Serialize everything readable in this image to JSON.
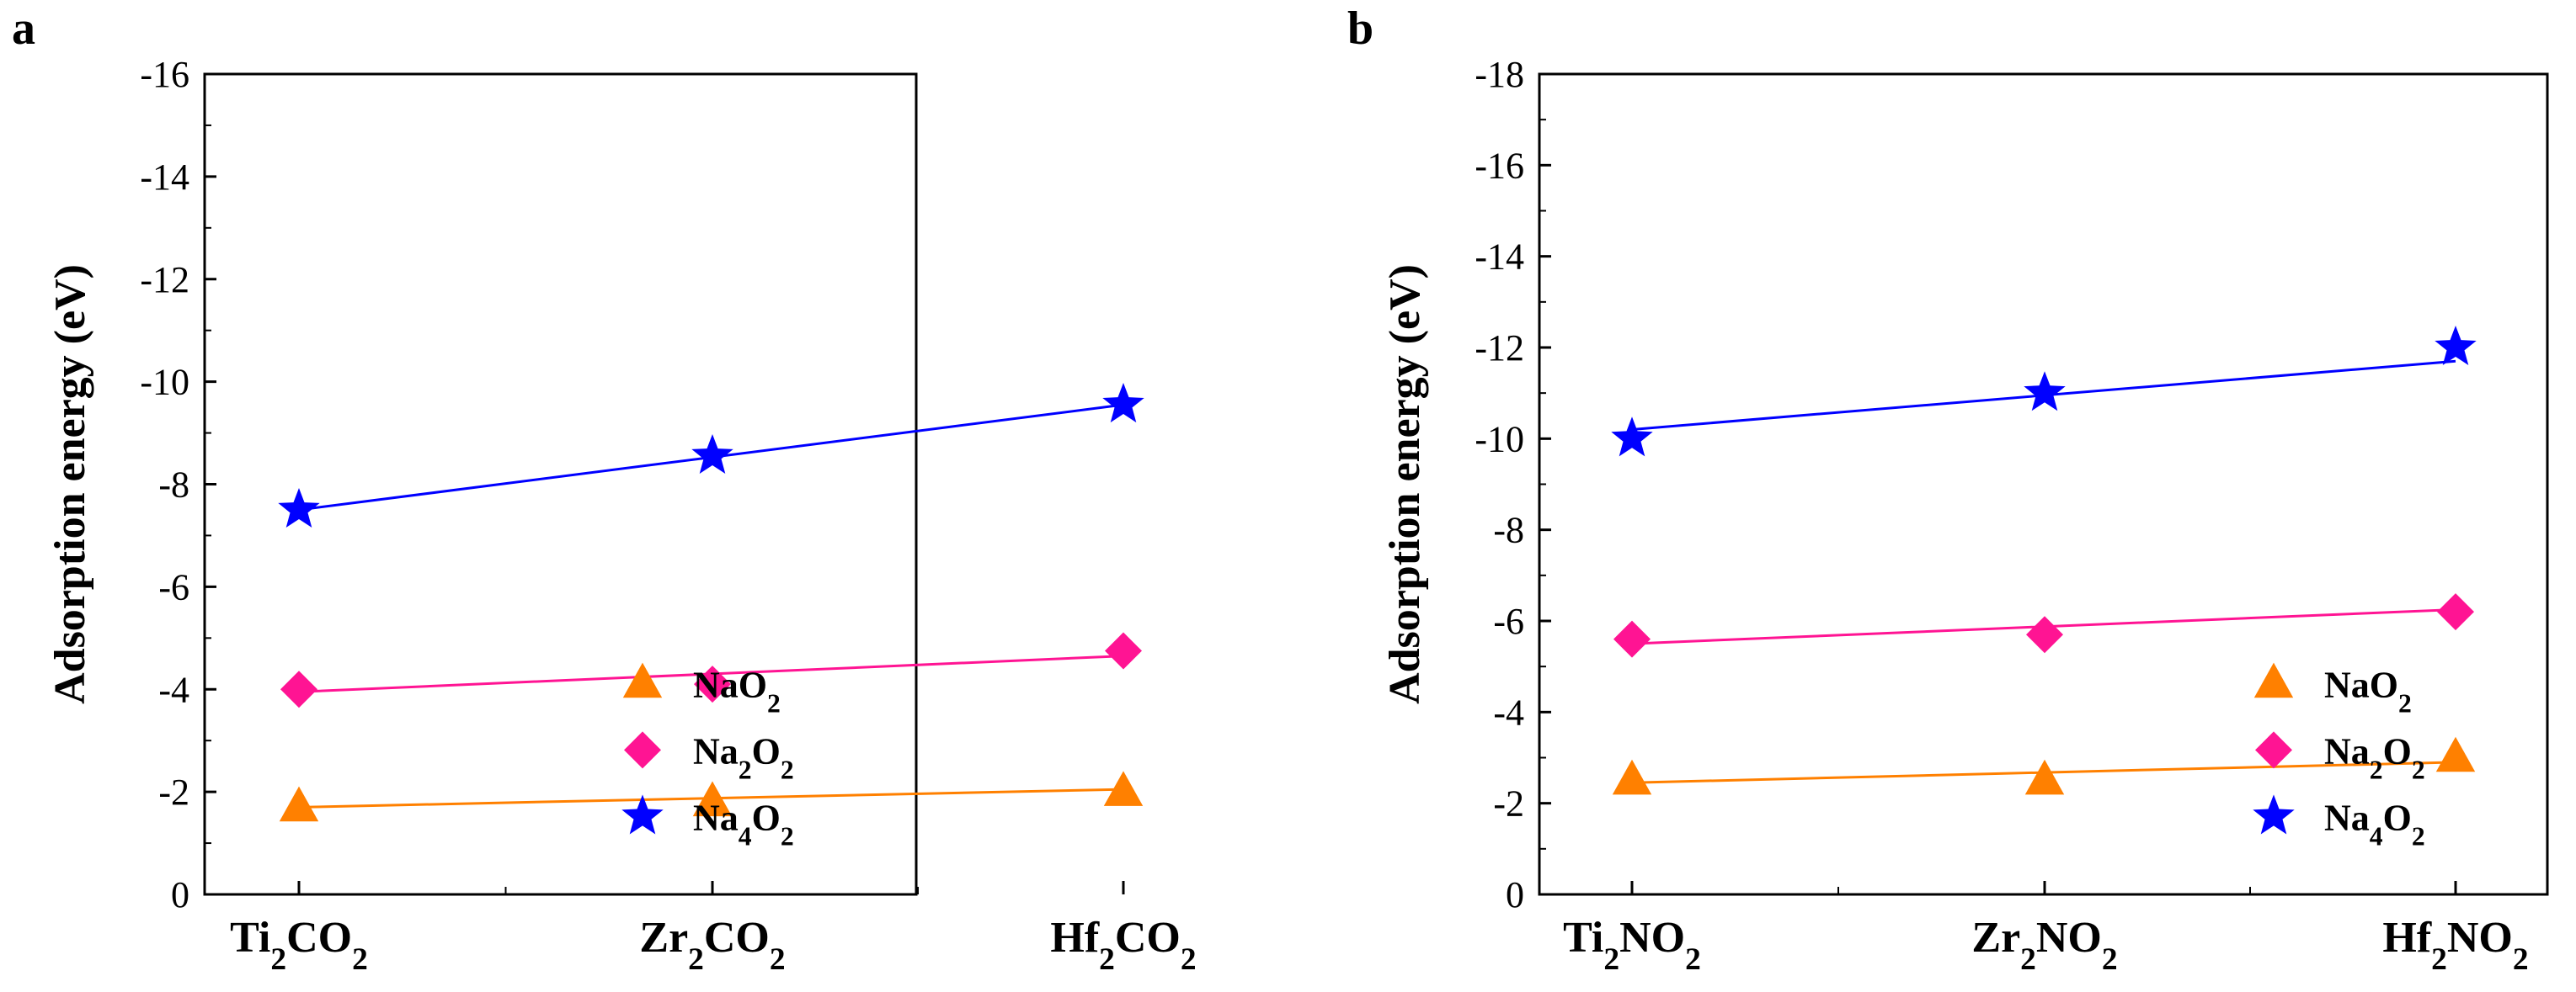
{
  "chart_data": [
    {
      "type": "scatter",
      "panel_label": "a",
      "ylabel": "Adsorption energy (eV)",
      "xlabel": "",
      "ylim": [
        -16,
        0
      ],
      "yticks": [
        0,
        -2,
        -4,
        -6,
        -8,
        -10,
        -12,
        -14,
        -16
      ],
      "categories": [
        {
          "base": "Ti",
          "sub1": "2",
          "mid": "CO",
          "sub2": "2"
        },
        {
          "base": "Zr",
          "sub1": "2",
          "mid": "CO",
          "sub2": "2"
        },
        {
          "base": "Hf",
          "sub1": "2",
          "mid": "CO",
          "sub2": "2"
        }
      ],
      "legend_position": "bottom-right",
      "series": [
        {
          "name": "NaO2",
          "label_parts": [
            {
              "t": "NaO",
              "sub": false
            },
            {
              "t": "2",
              "sub": true
            }
          ],
          "marker": "triangle",
          "color": "#FF8000",
          "values": [
            -1.7,
            -1.8,
            -2.0
          ],
          "fit": [
            -1.7,
            -2.05
          ]
        },
        {
          "name": "Na2O2",
          "label_parts": [
            {
              "t": "Na",
              "sub": false
            },
            {
              "t": "2",
              "sub": true
            },
            {
              "t": "O",
              "sub": false
            },
            {
              "t": "2",
              "sub": true
            }
          ],
          "marker": "diamond",
          "color": "#FF1493",
          "values": [
            -4.0,
            -4.1,
            -4.75
          ],
          "fit": [
            -3.95,
            -4.65
          ]
        },
        {
          "name": "Na4O2",
          "label_parts": [
            {
              "t": "Na",
              "sub": false
            },
            {
              "t": "4",
              "sub": true
            },
            {
              "t": "O",
              "sub": false
            },
            {
              "t": "2",
              "sub": true
            }
          ],
          "marker": "star",
          "color": "#0000FF",
          "values": [
            -7.5,
            -8.55,
            -9.55
          ],
          "fit": [
            -7.5,
            -9.55
          ]
        }
      ]
    },
    {
      "type": "scatter",
      "panel_label": "b",
      "ylabel": "Adsorption energy (eV)",
      "xlabel": "",
      "ylim": [
        -18,
        0
      ],
      "yticks": [
        0,
        -2,
        -4,
        -6,
        -8,
        -10,
        -12,
        -14,
        -16,
        -18
      ],
      "categories": [
        {
          "base": "Ti",
          "sub1": "2",
          "mid": "NO",
          "sub2": "2"
        },
        {
          "base": "Zr",
          "sub1": "2",
          "mid": "NO",
          "sub2": "2"
        },
        {
          "base": "Hf",
          "sub1": "2",
          "mid": "NO",
          "sub2": "2"
        }
      ],
      "legend_position": "bottom-right",
      "series": [
        {
          "name": "NaO2",
          "label_parts": [
            {
              "t": "NaO",
              "sub": false
            },
            {
              "t": "2",
              "sub": true
            }
          ],
          "marker": "triangle",
          "color": "#FF8000",
          "values": [
            -2.5,
            -2.5,
            -3.0
          ],
          "fit": [
            -2.45,
            -2.9
          ]
        },
        {
          "name": "Na2O2",
          "label_parts": [
            {
              "t": "Na",
              "sub": false
            },
            {
              "t": "2",
              "sub": true
            },
            {
              "t": "O",
              "sub": false
            },
            {
              "t": "2",
              "sub": true
            }
          ],
          "marker": "diamond",
          "color": "#FF1493",
          "values": [
            -5.6,
            -5.7,
            -6.2
          ],
          "fit": [
            -5.5,
            -6.25
          ]
        },
        {
          "name": "Na4O2",
          "label_parts": [
            {
              "t": "Na",
              "sub": false
            },
            {
              "t": "4",
              "sub": true
            },
            {
              "t": "O",
              "sub": false
            },
            {
              "t": "2",
              "sub": true
            }
          ],
          "marker": "star",
          "color": "#0000FF",
          "values": [
            -10.0,
            -11.0,
            -12.0
          ],
          "fit": [
            -10.2,
            -11.7
          ]
        }
      ]
    }
  ]
}
